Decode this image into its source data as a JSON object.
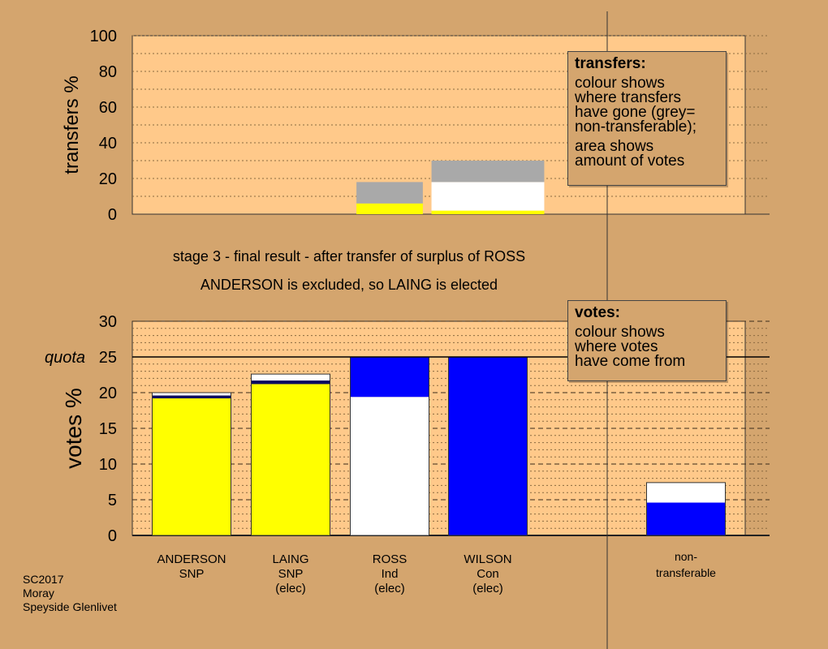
{
  "colors": {
    "background": "#d4a56e",
    "plot_bg": "#ffc98a",
    "SNP": "#ffff00",
    "Ind": "#ffffff",
    "Con": "#0000ff",
    "nontransferable": "#a9a9a9",
    "navy": "#0a0a60"
  },
  "stage_line": "stage 3 - final result - after transfer of surplus of ROSS",
  "result_line": "ANDERSON is excluded, so LAING is elected",
  "transfers_legend": {
    "title": "transfers:",
    "line1": "colour shows",
    "line2": "where transfers",
    "line3": "have gone (grey=",
    "line4": "non-transferable);",
    "line5": "area shows",
    "line6": "amount of votes"
  },
  "votes_legend": {
    "title": "votes:",
    "line1": "colour shows",
    "line2": "where votes",
    "line3": "have come from"
  },
  "footer": {
    "line1": "SC2017",
    "line2": "Moray",
    "line3": "Speyside Glenlivet"
  },
  "chart_data": [
    {
      "type": "bar",
      "name": "transfers",
      "ylabel": "transfers %",
      "ylim": [
        0,
        100
      ],
      "yticks": [
        "0",
        "20",
        "40",
        "60",
        "80",
        "100"
      ],
      "bars": [
        {
          "column": "ROSS",
          "width_share": 14.6,
          "segments": [
            {
              "party": "SNP",
              "value": 6
            },
            {
              "party": "nontransferable",
              "value": 12
            }
          ]
        },
        {
          "column": "WILSON",
          "width_share": 24.8,
          "segments": [
            {
              "party": "SNP",
              "value": 2
            },
            {
              "party": "Ind",
              "value": 16
            },
            {
              "party": "nontransferable",
              "value": 12
            }
          ]
        }
      ]
    },
    {
      "type": "bar",
      "name": "votes",
      "ylabel": "votes %",
      "ylim": [
        0,
        30
      ],
      "yticks": [
        "0",
        "5",
        "10",
        "15",
        "20",
        "25",
        "30"
      ],
      "quota": {
        "label": "quota",
        "value": 25
      },
      "candidates": [
        {
          "line1": "ANDERSON",
          "line2": "SNP",
          "line3": "",
          "segments": [
            {
              "party": "SNP",
              "value": 19.2
            },
            {
              "party": "navy",
              "value": 0.4
            },
            {
              "party": "Ind",
              "value": 0.4
            }
          ]
        },
        {
          "line1": "LAING",
          "line2": "SNP",
          "line3": "(elec)",
          "segments": [
            {
              "party": "SNP",
              "value": 21.2
            },
            {
              "party": "navy",
              "value": 0.5
            },
            {
              "party": "Ind",
              "value": 0.9
            }
          ]
        },
        {
          "line1": "ROSS",
          "line2": "Ind",
          "line3": "(elec)",
          "segments": [
            {
              "party": "Ind",
              "value": 19.4
            },
            {
              "party": "Con",
              "value": 5.6
            }
          ]
        },
        {
          "line1": "WILSON",
          "line2": "Con",
          "line3": "(elec)",
          "segments": [
            {
              "party": "Con",
              "value": 25.0
            }
          ]
        }
      ],
      "nontransferable": {
        "line1": "non-",
        "line2": "transferable",
        "segments": [
          {
            "party": "Con",
            "value": 4.6
          },
          {
            "party": "Ind",
            "value": 2.8
          }
        ]
      }
    }
  ]
}
